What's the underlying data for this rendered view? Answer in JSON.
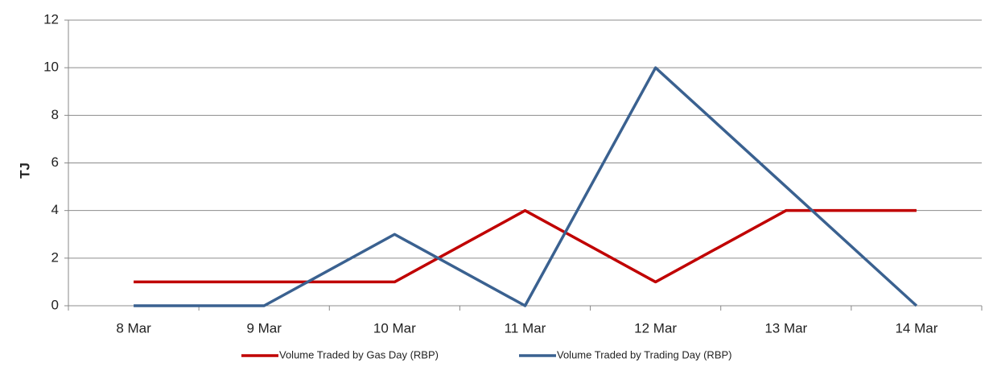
{
  "chart_data": {
    "type": "line",
    "y_label": "TJ",
    "categories": [
      "8 Mar",
      "9 Mar",
      "10 Mar",
      "11 Mar",
      "12 Mar",
      "13 Mar",
      "14 Mar"
    ],
    "series": [
      {
        "name": "Volume Traded by Gas Day (RBP)",
        "color": "#c00000",
        "values": [
          1,
          1,
          1,
          4,
          1,
          4,
          4
        ]
      },
      {
        "name": "Volume Traded by Trading Day (RBP)",
        "color": "#3a6190",
        "values": [
          0,
          0,
          3,
          0,
          10,
          5,
          0
        ]
      }
    ],
    "ylim": [
      0,
      12
    ],
    "yticks": [
      0,
      2,
      4,
      6,
      8,
      10,
      12
    ],
    "grid": true,
    "legend": "bottom"
  }
}
